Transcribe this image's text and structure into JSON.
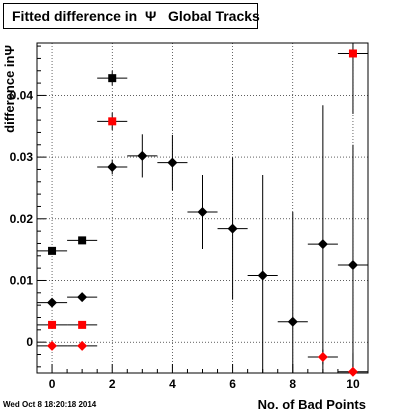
{
  "chart_data": {
    "type": "scatter",
    "title": "Fitted difference in  Ψ   Global Tracks",
    "xlabel": "No. of Bad Points",
    "ylabel": "difference inΨ",
    "xlim": [
      -0.5,
      10.5
    ],
    "ylim": [
      -0.005,
      0.0485
    ],
    "xticks": [
      "0",
      "2",
      "4",
      "6",
      "8",
      "10"
    ],
    "yticks": [
      "0",
      "0.01",
      "0.02",
      "0.03",
      "0.04"
    ],
    "grid": true,
    "legend": "none",
    "series": [
      {
        "marker": "square",
        "color": "#000000",
        "points": [
          {
            "x": 0,
            "y": 0.0148,
            "xerr": 0.5,
            "yerr": 0.0005
          },
          {
            "x": 1,
            "y": 0.0165,
            "xerr": 0.5,
            "yerr": 0.0005
          },
          {
            "x": 2,
            "y": 0.0428,
            "xerr": 0.5,
            "yerr": 0.0012
          }
        ]
      },
      {
        "marker": "square",
        "color": "#ff0000",
        "points": [
          {
            "x": 0,
            "y": 0.0028,
            "xerr": 0.5,
            "yerr": 0.0004
          },
          {
            "x": 1,
            "y": 0.0028,
            "xerr": 0.5,
            "yerr": 0.0004
          },
          {
            "x": 2,
            "y": 0.0358,
            "xerr": 0.5,
            "yerr": 0.0014
          },
          {
            "x": 10,
            "y": 0.0468,
            "xerr": 0.5,
            "yerr": 0.0098
          }
        ]
      },
      {
        "marker": "diamond",
        "color": "#000000",
        "points": [
          {
            "x": 0,
            "y": 0.0064,
            "xerr": 0.5,
            "yerr": 0.0004
          },
          {
            "x": 1,
            "y": 0.0073,
            "xerr": 0.5,
            "yerr": 0.0004
          },
          {
            "x": 2,
            "y": 0.0284,
            "xerr": 0.5,
            "yerr": 0.0012
          },
          {
            "x": 3,
            "y": 0.0302,
            "xerr": 0.5,
            "yerr": 0.0035
          },
          {
            "x": 4,
            "y": 0.0291,
            "xerr": 0.5,
            "yerr": 0.0045
          },
          {
            "x": 5,
            "y": 0.0211,
            "xerr": 0.5,
            "yerr": 0.006
          },
          {
            "x": 6,
            "y": 0.0184,
            "xerr": 0.5,
            "yerr": 0.0115
          },
          {
            "x": 7,
            "y": 0.0108,
            "xerr": 0.5,
            "yerr": 0.0163
          },
          {
            "x": 8,
            "y": 0.0033,
            "xerr": 0.5,
            "yerr": 0.0178
          },
          {
            "x": 9,
            "y": 0.0159,
            "xerr": 0.5,
            "yerr": 0.0225
          },
          {
            "x": 10,
            "y": 0.0125,
            "xerr": 0.5,
            "yerr": 0.0195
          }
        ]
      },
      {
        "marker": "diamond",
        "color": "#ff0000",
        "points": [
          {
            "x": 0,
            "y": -0.0006,
            "xerr": 0.5,
            "yerr": 0.0003
          },
          {
            "x": 1,
            "y": -0.0006,
            "xerr": 0.5,
            "yerr": 0.0003
          },
          {
            "x": 9,
            "y": -0.0024,
            "xerr": 0.5,
            "yerr": 0.0012
          },
          {
            "x": 10,
            "y": -0.0048,
            "xerr": 0.5,
            "yerr": 0.003
          }
        ]
      }
    ]
  },
  "footer": {
    "timestamp": "Wed Oct  8 18:20:18 2014"
  }
}
